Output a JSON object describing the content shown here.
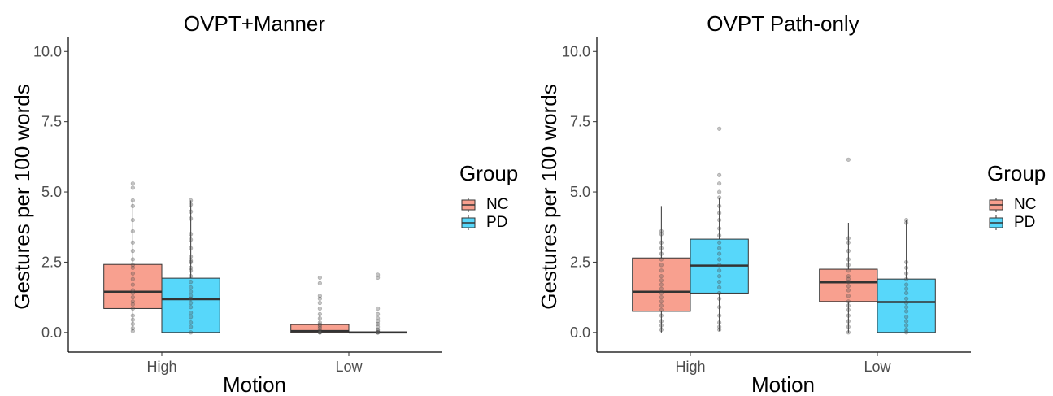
{
  "chart_data": [
    {
      "type": "boxplot",
      "title": "OVPT+Manner",
      "xlabel": "Motion",
      "ylabel": "Gestures per 100 words",
      "ylim": [
        -0.7,
        10.5
      ],
      "yticks": [
        "0.0",
        "2.5",
        "5.0",
        "7.5",
        "10.0"
      ],
      "categories": [
        "High",
        "Low"
      ],
      "legend_title": "Group",
      "grid": false,
      "series": [
        {
          "name": "NC",
          "color": "#F8A08F",
          "boxes": [
            {
              "category": "High",
              "whisker_low": 0.05,
              "q1": 0.85,
              "median": 1.45,
              "q3": 2.42,
              "whisker_high": 4.7,
              "points": [
                5.3,
                5.15,
                4.7,
                4.5,
                4.0,
                3.6,
                3.2,
                2.9,
                2.6,
                2.4,
                2.3,
                2.1,
                1.9,
                1.7,
                1.5,
                1.4,
                1.25,
                1.1,
                1.0,
                0.85,
                0.6,
                0.45,
                0.3,
                0.15,
                0.05
              ]
            },
            {
              "category": "Low",
              "whisker_low": 0.0,
              "q1": 0.0,
              "median": 0.05,
              "q3": 0.28,
              "whisker_high": 0.65,
              "points": [
                1.95,
                1.75,
                1.3,
                1.2,
                1.05,
                0.85,
                0.65,
                0.5,
                0.35,
                0.28,
                0.22,
                0.15,
                0.08,
                0.03,
                0.0,
                0.0,
                0.0
              ]
            }
          ]
        },
        {
          "name": "PD",
          "color": "#57D7FA",
          "boxes": [
            {
              "category": "High",
              "whisker_low": 0.0,
              "q1": 0.0,
              "median": 1.18,
              "q3": 1.93,
              "whisker_high": 4.7,
              "points": [
                4.7,
                4.55,
                4.3,
                4.05,
                3.5,
                3.3,
                3.0,
                2.7,
                2.55,
                2.5,
                2.3,
                2.2,
                2.0,
                1.8,
                1.6,
                1.45,
                1.3,
                1.2,
                1.05,
                0.9,
                0.7,
                0.55,
                0.35,
                0.2,
                0.0
              ]
            },
            {
              "category": "Low",
              "whisker_low": 0.0,
              "q1": 0.0,
              "median": 0.0,
              "q3": 0.02,
              "whisker_high": 0.05,
              "points": [
                2.05,
                1.95,
                0.85,
                0.65,
                0.5,
                0.4,
                0.3,
                0.2,
                0.1,
                0.05,
                0.0,
                0.0,
                0.0
              ]
            }
          ]
        }
      ]
    },
    {
      "type": "boxplot",
      "title": "OVPT Path-only",
      "xlabel": "Motion",
      "ylabel": "Gestures per 100 words",
      "ylim": [
        -0.7,
        10.5
      ],
      "yticks": [
        "0.0",
        "2.5",
        "5.0",
        "7.5",
        "10.0"
      ],
      "categories": [
        "High",
        "Low"
      ],
      "legend_title": "Group",
      "grid": false,
      "series": [
        {
          "name": "NC",
          "color": "#F8A08F",
          "boxes": [
            {
              "category": "High",
              "whisker_low": 0.0,
              "q1": 0.75,
              "median": 1.45,
              "q3": 2.65,
              "whisker_high": 4.5,
              "points": [
                3.6,
                3.5,
                3.2,
                3.0,
                2.8,
                2.6,
                2.4,
                2.2,
                2.0,
                1.85,
                1.7,
                1.55,
                1.4,
                1.25,
                1.1,
                0.95,
                0.8,
                0.6,
                0.4,
                0.25,
                0.1
              ]
            },
            {
              "category": "Low",
              "whisker_low": 0.0,
              "q1": 1.1,
              "median": 1.78,
              "q3": 2.25,
              "whisker_high": 3.9,
              "points": [
                6.15,
                3.35,
                3.2,
                2.9,
                2.6,
                2.4,
                2.2,
                2.0,
                1.9,
                1.8,
                1.65,
                1.5,
                1.3,
                1.1,
                0.95,
                0.8,
                0.6,
                0.4,
                0.2,
                0.0
              ]
            }
          ]
        },
        {
          "name": "PD",
          "color": "#57D7FA",
          "boxes": [
            {
              "category": "High",
              "whisker_low": 0.05,
              "q1": 1.4,
              "median": 2.38,
              "q3": 3.32,
              "whisker_high": 4.8,
              "points": [
                7.25,
                5.6,
                5.3,
                5.0,
                4.8,
                4.5,
                4.25,
                4.0,
                3.7,
                3.45,
                3.2,
                3.0,
                2.8,
                2.6,
                2.4,
                2.2,
                2.0,
                1.8,
                1.6,
                1.4,
                1.2,
                0.9,
                0.6,
                0.35,
                0.2,
                0.1
              ]
            },
            {
              "category": "Low",
              "whisker_low": 0.0,
              "q1": 0.0,
              "median": 1.08,
              "q3": 1.9,
              "whisker_high": 4.0,
              "points": [
                4.0,
                3.9,
                2.5,
                2.3,
                2.1,
                1.9,
                1.7,
                1.55,
                1.4,
                1.2,
                1.05,
                0.9,
                0.75,
                0.55,
                0.4,
                0.25,
                0.1,
                0.0
              ]
            }
          ]
        }
      ]
    }
  ]
}
